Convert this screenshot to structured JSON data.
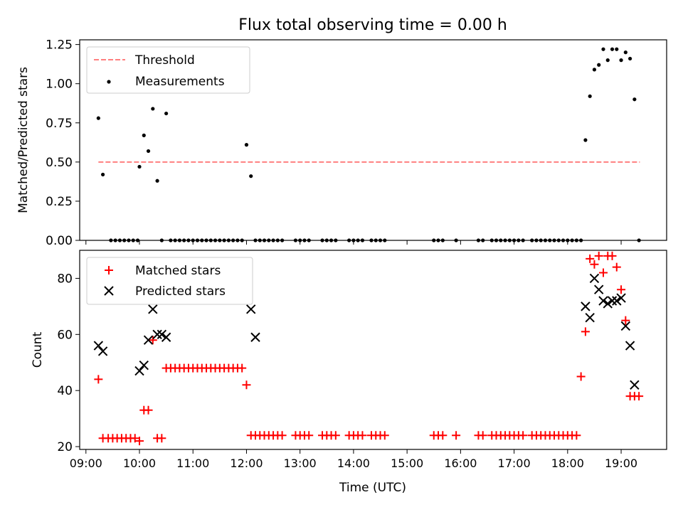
{
  "title": "Flux total observing time = 0.00 h",
  "xlabel": "Time (UTC)",
  "chart_data": [
    {
      "type": "scatter",
      "panel": "top",
      "ylabel": "Matched/Predicted stars",
      "xlim": [
        "08:53",
        "19:51"
      ],
      "ylim": [
        0,
        1.28
      ],
      "yticks": [
        "0.00",
        "0.25",
        "0.50",
        "0.75",
        "1.00",
        "1.25"
      ],
      "ytick_values": [
        0,
        0.25,
        0.5,
        0.75,
        1.0,
        1.25
      ],
      "legend_position": "upper-left",
      "threshold": {
        "name": "Threshold",
        "value": 0.5,
        "x_range": [
          "09:14",
          "19:21"
        ],
        "color": "#ff7f7f"
      },
      "series": [
        {
          "name": "Measurements",
          "color": "#000000",
          "x": [
            "09:14",
            "09:19",
            "09:28",
            "09:33",
            "09:38",
            "09:43",
            "09:48",
            "09:53",
            "09:58",
            "10:00",
            "10:05",
            "10:10",
            "10:15",
            "10:20",
            "10:25",
            "10:30",
            "10:35",
            "10:40",
            "10:45",
            "10:50",
            "10:55",
            "11:00",
            "11:05",
            "11:10",
            "11:15",
            "11:20",
            "11:25",
            "11:30",
            "11:35",
            "11:40",
            "11:45",
            "11:50",
            "11:55",
            "12:00",
            "12:05",
            "12:10",
            "12:15",
            "12:20",
            "12:25",
            "12:30",
            "12:35",
            "12:40",
            "12:55",
            "13:00",
            "13:05",
            "13:10",
            "13:25",
            "13:30",
            "13:35",
            "13:40",
            "13:55",
            "14:00",
            "14:05",
            "14:10",
            "14:20",
            "14:25",
            "14:30",
            "14:35",
            "15:30",
            "15:35",
            "15:40",
            "15:55",
            "16:20",
            "16:25",
            "16:35",
            "16:40",
            "16:45",
            "16:50",
            "16:55",
            "17:00",
            "17:05",
            "17:10",
            "17:20",
            "17:25",
            "17:30",
            "17:35",
            "17:40",
            "17:45",
            "17:50",
            "17:55",
            "18:00",
            "18:05",
            "18:10",
            "18:15",
            "18:20",
            "18:25",
            "18:30",
            "18:35",
            "18:40",
            "18:45",
            "18:50",
            "18:55",
            "19:00",
            "19:05",
            "19:10",
            "19:15",
            "19:20"
          ],
          "y": [
            0.78,
            0.42,
            0,
            0,
            0,
            0,
            0,
            0,
            0,
            0.47,
            0.67,
            0.57,
            0.84,
            0.38,
            0,
            0.81,
            0,
            0,
            0,
            0,
            0,
            0,
            0,
            0,
            0,
            0,
            0,
            0,
            0,
            0,
            0,
            0,
            0,
            0.61,
            0.41,
            0,
            0,
            0,
            0,
            0,
            0,
            0,
            0,
            0,
            0,
            0,
            0,
            0,
            0,
            0,
            0,
            0,
            0,
            0,
            0,
            0,
            0,
            0,
            0,
            0,
            0,
            0,
            0,
            0,
            0,
            0,
            0,
            0,
            0,
            0,
            0,
            0,
            0,
            0,
            0,
            0,
            0,
            0,
            0,
            0,
            0,
            0,
            0,
            0,
            0.64,
            0.92,
            1.09,
            1.12,
            1.22,
            1.15,
            1.22,
            1.22,
            1.15,
            1.2,
            1.16,
            0.9,
            0
          ]
        }
      ]
    },
    {
      "type": "scatter",
      "panel": "bottom",
      "ylabel": "Count",
      "xlim": [
        "08:53",
        "19:51"
      ],
      "ylim": [
        19,
        90
      ],
      "yticks": [
        "20",
        "40",
        "60",
        "80"
      ],
      "ytick_values": [
        20,
        40,
        60,
        80
      ],
      "xticks": [
        "09:00",
        "10:00",
        "11:00",
        "12:00",
        "13:00",
        "14:00",
        "15:00",
        "16:00",
        "17:00",
        "18:00",
        "19:00"
      ],
      "legend_position": "upper-left",
      "series": [
        {
          "name": "Matched stars",
          "marker": "plus",
          "color": "#ff0000",
          "x": [
            "09:14",
            "09:19",
            "09:25",
            "09:30",
            "09:35",
            "09:40",
            "09:45",
            "09:50",
            "09:55",
            "10:00",
            "10:05",
            "10:10",
            "10:15",
            "10:20",
            "10:25",
            "10:30",
            "10:35",
            "10:40",
            "10:45",
            "10:50",
            "10:55",
            "11:00",
            "11:05",
            "11:10",
            "11:15",
            "11:20",
            "11:25",
            "11:30",
            "11:35",
            "11:40",
            "11:45",
            "11:50",
            "11:55",
            "12:00",
            "12:05",
            "12:10",
            "12:15",
            "12:20",
            "12:25",
            "12:30",
            "12:35",
            "12:40",
            "12:55",
            "13:00",
            "13:05",
            "13:10",
            "13:25",
            "13:30",
            "13:35",
            "13:40",
            "13:55",
            "14:00",
            "14:05",
            "14:10",
            "14:20",
            "14:25",
            "14:30",
            "14:35",
            "15:30",
            "15:35",
            "15:40",
            "15:55",
            "16:20",
            "16:25",
            "16:35",
            "16:40",
            "16:45",
            "16:50",
            "16:55",
            "17:00",
            "17:05",
            "17:10",
            "17:20",
            "17:25",
            "17:30",
            "17:35",
            "17:40",
            "17:45",
            "17:50",
            "17:55",
            "18:00",
            "18:05",
            "18:10",
            "18:15",
            "18:20",
            "18:25",
            "18:30",
            "18:35",
            "18:40",
            "18:45",
            "18:50",
            "18:55",
            "19:00",
            "19:05",
            "19:10",
            "19:15",
            "19:20"
          ],
          "y": [
            44,
            23,
            23,
            23,
            23,
            23,
            23,
            23,
            23,
            22,
            33,
            33,
            58,
            23,
            23,
            48,
            48,
            48,
            48,
            48,
            48,
            48,
            48,
            48,
            48,
            48,
            48,
            48,
            48,
            48,
            48,
            48,
            48,
            42,
            24,
            24,
            24,
            24,
            24,
            24,
            24,
            24,
            24,
            24,
            24,
            24,
            24,
            24,
            24,
            24,
            24,
            24,
            24,
            24,
            24,
            24,
            24,
            24,
            24,
            24,
            24,
            24,
            24,
            24,
            24,
            24,
            24,
            24,
            24,
            24,
            24,
            24,
            24,
            24,
            24,
            24,
            24,
            24,
            24,
            24,
            24,
            24,
            24,
            45,
            61,
            87,
            85,
            88,
            82,
            88,
            88,
            84,
            76,
            65,
            38,
            38,
            38
          ]
        },
        {
          "name": "Predicted stars",
          "marker": "x",
          "color": "#000000",
          "x": [
            "09:14",
            "09:19",
            "10:00",
            "10:05",
            "10:10",
            "10:15",
            "10:20",
            "10:25",
            "10:30",
            "12:05",
            "12:10",
            "18:20",
            "18:25",
            "18:30",
            "18:35",
            "18:40",
            "18:45",
            "18:50",
            "18:55",
            "19:00",
            "19:05",
            "19:10",
            "19:15"
          ],
          "y": [
            56,
            54,
            47,
            49,
            58,
            69,
            60,
            60,
            59,
            69,
            59,
            70,
            66,
            80,
            76,
            72,
            71,
            72,
            72,
            73,
            63,
            56,
            42
          ]
        }
      ]
    }
  ]
}
